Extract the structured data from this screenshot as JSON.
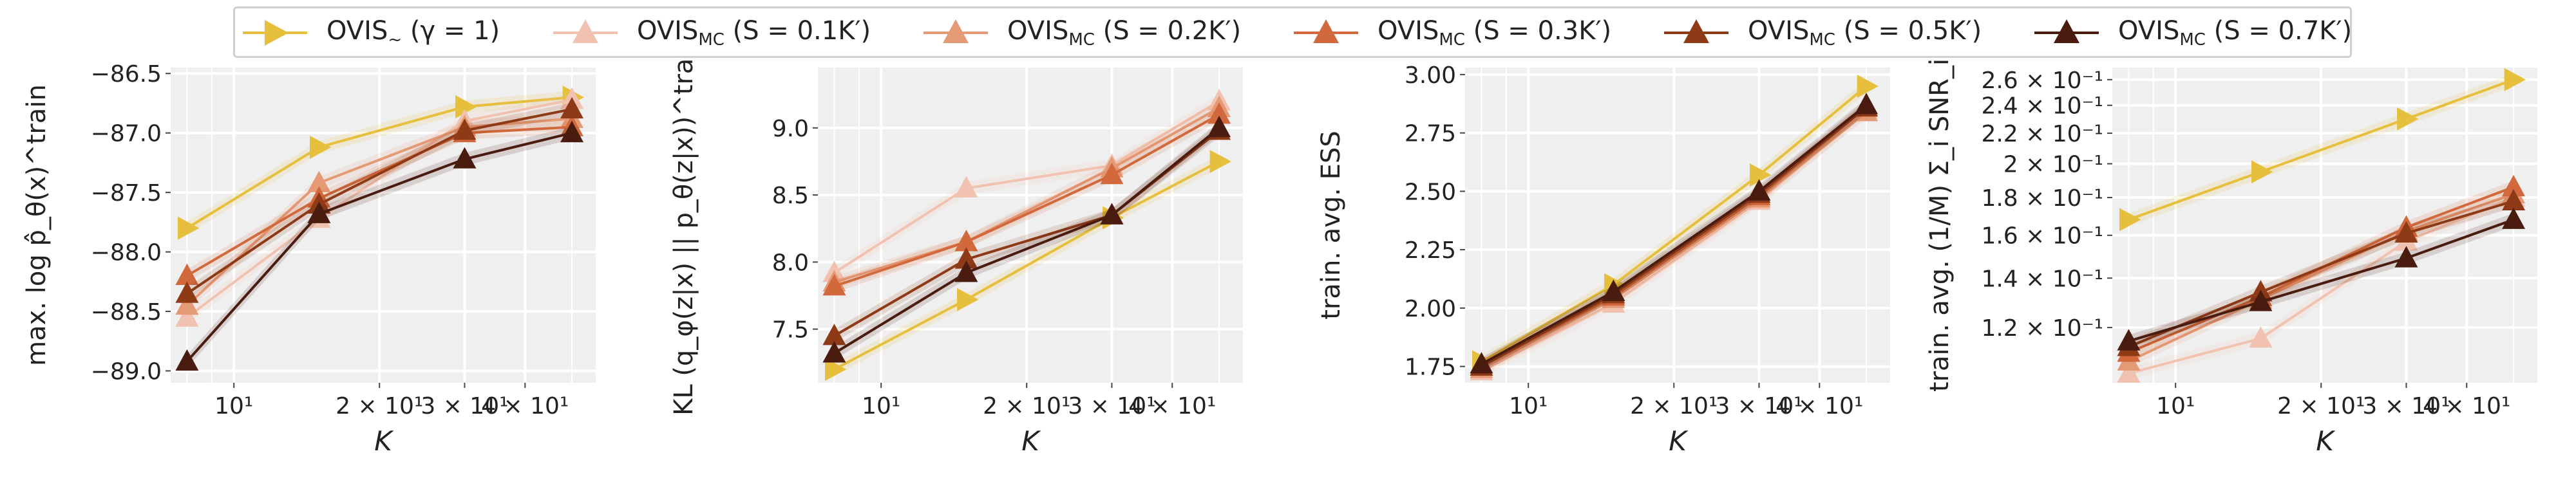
{
  "figure": {
    "x_axis_label": "K",
    "x_tick_labels": [
      "10¹",
      "2 × 10¹",
      "3 × 10¹",
      "4 × 10¹"
    ]
  },
  "legend": {
    "entries": [
      {
        "name": "OVIS~ (γ = 1)",
        "base": "OVIS",
        "sub": "~",
        "rest": " (γ = 1)",
        "color": "#e6bf3c",
        "marker": "right-triangle"
      },
      {
        "name": "OVIS_MC (S = 0.1K')",
        "base": "OVIS",
        "sub": "MC",
        "rest": " (S = 0.1K′)",
        "color": "#f2c2b0",
        "marker": "triangle"
      },
      {
        "name": "OVIS_MC (S = 0.2K')",
        "base": "OVIS",
        "sub": "MC",
        "rest": " (S = 0.2K′)",
        "color": "#e59a76",
        "marker": "triangle"
      },
      {
        "name": "OVIS_MC (S = 0.3K')",
        "base": "OVIS",
        "sub": "MC",
        "rest": " (S = 0.3K′)",
        "color": "#d2693d",
        "marker": "triangle"
      },
      {
        "name": "OVIS_MC (S = 0.5K')",
        "base": "OVIS",
        "sub": "MC",
        "rest": " (S = 0.5K′)",
        "color": "#8f3a17",
        "marker": "triangle"
      },
      {
        "name": "OVIS_MC (S = 0.7K')",
        "base": "OVIS",
        "sub": "MC",
        "rest": " (S = 0.7K′)",
        "color": "#4a1c10",
        "marker": "triangle"
      }
    ]
  },
  "chart_data": [
    {
      "type": "line",
      "ylabel": "max. log p̂_θ(x)^train",
      "x": [
        8,
        15,
        30,
        50
      ],
      "x_scale": "log",
      "xlim": [
        7.4,
        56
      ],
      "ylim": [
        -89.1,
        -86.45
      ],
      "y_ticks": [
        -89.0,
        -88.5,
        -88.0,
        -87.5,
        -87.0,
        -86.5
      ],
      "y_tick_labels": [
        "−89.0",
        "−88.5",
        "−88.0",
        "−87.5",
        "−87.0",
        "−86.5"
      ],
      "grid": true,
      "series": [
        {
          "name": "OVIS~ (γ = 1)",
          "values": [
            -87.8,
            -87.12,
            -86.78,
            -86.7
          ]
        },
        {
          "name": "OVIS_MC (S = 0.1K')",
          "values": [
            -88.55,
            -87.72,
            -86.9,
            -86.72
          ]
        },
        {
          "name": "OVIS_MC (S = 0.2K')",
          "values": [
            -88.45,
            -87.42,
            -86.95,
            -86.88
          ]
        },
        {
          "name": "OVIS_MC (S = 0.3K')",
          "values": [
            -88.2,
            -87.55,
            -87.0,
            -86.95
          ]
        },
        {
          "name": "OVIS_MC (S = 0.5K')",
          "values": [
            -88.35,
            -87.6,
            -86.98,
            -86.8
          ]
        },
        {
          "name": "OVIS_MC (S = 0.7K')",
          "values": [
            -88.92,
            -87.68,
            -87.22,
            -87.0
          ]
        }
      ]
    },
    {
      "type": "line",
      "ylabel": "KL (q_φ(z|x) || p_θ(z|x))^train",
      "x": [
        8,
        15,
        30,
        50
      ],
      "x_scale": "log",
      "xlim": [
        7.4,
        56
      ],
      "ylim": [
        7.1,
        9.45
      ],
      "y_ticks": [
        7.5,
        8.0,
        8.5,
        9.0
      ],
      "y_tick_labels": [
        "7.5",
        "8.0",
        "8.5",
        "9.0"
      ],
      "grid": true,
      "series": [
        {
          "name": "OVIS~ (γ = 1)",
          "values": [
            7.2,
            7.72,
            8.33,
            8.75
          ]
        },
        {
          "name": "OVIS_MC (S = 0.1K')",
          "values": [
            7.92,
            8.55,
            8.72,
            9.2
          ]
        },
        {
          "name": "OVIS_MC (S = 0.2K')",
          "values": [
            7.85,
            8.15,
            8.7,
            9.15
          ]
        },
        {
          "name": "OVIS_MC (S = 0.3K')",
          "values": [
            7.82,
            8.15,
            8.65,
            9.1
          ]
        },
        {
          "name": "OVIS_MC (S = 0.5K')",
          "values": [
            7.45,
            8.02,
            8.35,
            8.98
          ]
        },
        {
          "name": "OVIS_MC (S = 0.7K')",
          "values": [
            7.32,
            7.92,
            8.35,
            9.0
          ]
        }
      ]
    },
    {
      "type": "line",
      "ylabel": "train. avg. ESS",
      "x": [
        8,
        15,
        30,
        50
      ],
      "x_scale": "log",
      "xlim": [
        7.4,
        56
      ],
      "ylim": [
        1.68,
        3.03
      ],
      "y_ticks": [
        1.75,
        2.0,
        2.25,
        2.5,
        2.75,
        3.0
      ],
      "y_tick_labels": [
        "1.75",
        "2.00",
        "2.25",
        "2.50",
        "2.75",
        "3.00"
      ],
      "grid": true,
      "series": [
        {
          "name": "OVIS~ (γ = 1)",
          "values": [
            1.77,
            2.1,
            2.57,
            2.95
          ]
        },
        {
          "name": "OVIS_MC (S = 0.1K')",
          "values": [
            1.73,
            2.02,
            2.46,
            2.85
          ]
        },
        {
          "name": "OVIS_MC (S = 0.2K')",
          "values": [
            1.74,
            2.04,
            2.47,
            2.84
          ]
        },
        {
          "name": "OVIS_MC (S = 0.3K')",
          "values": [
            1.75,
            2.05,
            2.48,
            2.86
          ]
        },
        {
          "name": "OVIS_MC (S = 0.5K')",
          "values": [
            1.75,
            2.06,
            2.49,
            2.86
          ]
        },
        {
          "name": "OVIS_MC (S = 0.7K')",
          "values": [
            1.76,
            2.07,
            2.5,
            2.87
          ]
        }
      ]
    },
    {
      "type": "line",
      "ylabel": "train. avg. (1/M) Σ_i SNR_i",
      "x": [
        8,
        15,
        30,
        50
      ],
      "x_scale": "log",
      "xlim": [
        7.4,
        56
      ],
      "y_scale": "log",
      "ylim": [
        0.101,
        0.27
      ],
      "y_ticks": [
        0.12,
        0.14,
        0.16,
        0.18,
        0.2,
        0.22,
        0.24,
        0.26
      ],
      "y_tick_labels": [
        "1.2 × 10⁻¹",
        "1.4 × 10⁻¹",
        "1.6 × 10⁻¹",
        "1.8 × 10⁻¹",
        "2 × 10⁻¹",
        "2.2 × 10⁻¹",
        "2.4 × 10⁻¹",
        "2.6 × 10⁻¹"
      ],
      "grid": true,
      "series": [
        {
          "name": "OVIS~ (γ = 1)",
          "values": [
            0.168,
            0.195,
            0.23,
            0.26
          ]
        },
        {
          "name": "OVIS_MC (S = 0.1K')",
          "values": [
            0.104,
            0.116,
            0.157,
            0.18
          ]
        },
        {
          "name": "OVIS_MC (S = 0.2K')",
          "values": [
            0.108,
            0.131,
            0.162,
            0.182
          ]
        },
        {
          "name": "OVIS_MC (S = 0.3K')",
          "values": [
            0.111,
            0.132,
            0.164,
            0.186
          ]
        },
        {
          "name": "OVIS_MC (S = 0.5K')",
          "values": [
            0.113,
            0.134,
            0.161,
            0.178
          ]
        },
        {
          "name": "OVIS_MC (S = 0.7K')",
          "values": [
            0.115,
            0.13,
            0.149,
            0.168
          ]
        }
      ]
    }
  ]
}
